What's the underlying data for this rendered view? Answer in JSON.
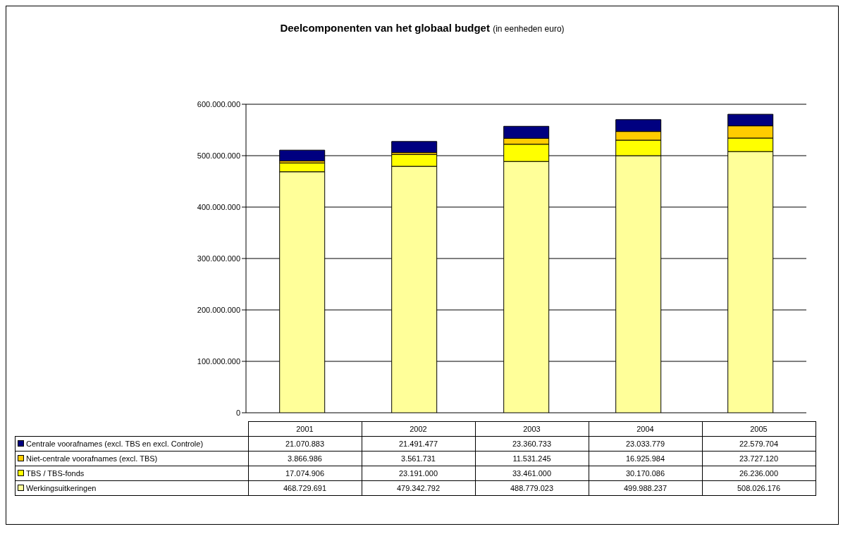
{
  "chart_data": {
    "type": "bar",
    "title": "Deelcomponenten van het globaal budget",
    "subtitle": "(in eenheden euro)",
    "categories": [
      "2001",
      "2002",
      "2003",
      "2004",
      "2005"
    ],
    "stacked": true,
    "series": [
      {
        "name": "Werkingsuitkeringen",
        "color": "#ffff99",
        "values": [
          468729691,
          479342792,
          488779023,
          499988237,
          508026176
        ],
        "value_labels": [
          "468.729.691",
          "479.342.792",
          "488.779.023",
          "499.988.237",
          "508.026.176"
        ]
      },
      {
        "name": "TBS / TBS-fonds",
        "color": "#ffff00",
        "values": [
          17074906,
          23191000,
          33461000,
          30170086,
          26236000
        ],
        "value_labels": [
          "17.074.906",
          "23.191.000",
          "33.461.000",
          "30.170.086",
          "26.236.000"
        ]
      },
      {
        "name": "Niet-centrale voorafnames (excl. TBS)",
        "color": "#ffcc00",
        "values": [
          3866986,
          3561731,
          11531245,
          16925984,
          23727120
        ],
        "value_labels": [
          "3.866.986",
          "3.561.731",
          "11.531.245",
          "16.925.984",
          "23.727.120"
        ]
      },
      {
        "name": "Centrale voorafnames (excl. TBS en excl. Controle)",
        "color": "#000080",
        "values": [
          21070883,
          21491477,
          23360733,
          23033779,
          22579704
        ],
        "value_labels": [
          "21.070.883",
          "21.491.477",
          "23.360.733",
          "23.033.779",
          "22.579.704"
        ]
      }
    ],
    "ylim": [
      0,
      600000000
    ],
    "yticks": [
      0,
      {
        "value": 100000000,
        "label": "100.000.000"
      },
      {
        "value": 200000000,
        "label": "200.000.000"
      },
      {
        "value": 300000000,
        "label": "300.000.000"
      },
      {
        "value": 400000000,
        "label": "400.000.000"
      },
      {
        "value": 500000000,
        "label": "500.000.000"
      },
      {
        "value": 600000000,
        "label": "600.000.000"
      }
    ],
    "grid": "y",
    "legend": "bottom"
  }
}
